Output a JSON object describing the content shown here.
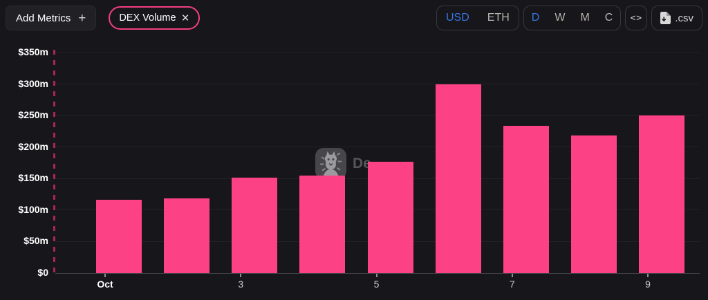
{
  "header": {
    "add_metrics": {
      "label": "Add Metrics",
      "plus": "+"
    },
    "metric_pill": {
      "label": "DEX Volume",
      "close": "×"
    },
    "currency_toggle": {
      "options": [
        "USD",
        "ETH"
      ],
      "selected": "USD"
    },
    "interval_toggle": {
      "options": [
        "D",
        "W",
        "M",
        "C"
      ],
      "selected": "D"
    },
    "embed_button": {
      "icon": "<>"
    },
    "csv_button": {
      "label": ".csv"
    }
  },
  "watermark": {
    "text": "De"
  },
  "colors": {
    "background": "#17161a",
    "accent_pink": "#f43f85",
    "accent_blue": "#3575e3",
    "bar_pink": "#fc4285",
    "axis_dash_crimson": "#ad2260"
  },
  "chart_data": {
    "type": "bar",
    "unit": "USD millions",
    "n_bars": 9,
    "values": [
      116,
      118,
      151,
      155,
      177,
      300,
      234,
      218,
      250
    ],
    "bar_color": "#fc4285",
    "axis_dash_color": "#ad2260",
    "grid": true,
    "y_axis": {
      "min": 0,
      "max": 350,
      "ticks": [
        {
          "value": 0,
          "label": "$0"
        },
        {
          "value": 50,
          "label": "$50m"
        },
        {
          "value": 100,
          "label": "$100m"
        },
        {
          "value": 150,
          "label": "$150m"
        },
        {
          "value": 200,
          "label": "$200m"
        },
        {
          "value": 250,
          "label": "$250m"
        },
        {
          "value": 300,
          "label": "$300m"
        },
        {
          "value": 350,
          "label": "$350m"
        }
      ]
    },
    "x_axis": {
      "ticks": [
        {
          "bar_index": 0,
          "label": "Oct",
          "bold": true
        },
        {
          "bar_index": 2,
          "label": "3",
          "bold": false
        },
        {
          "bar_index": 4,
          "label": "5",
          "bold": false
        },
        {
          "bar_index": 6,
          "label": "7",
          "bold": false
        },
        {
          "bar_index": 8,
          "label": "9",
          "bold": false
        }
      ]
    }
  }
}
